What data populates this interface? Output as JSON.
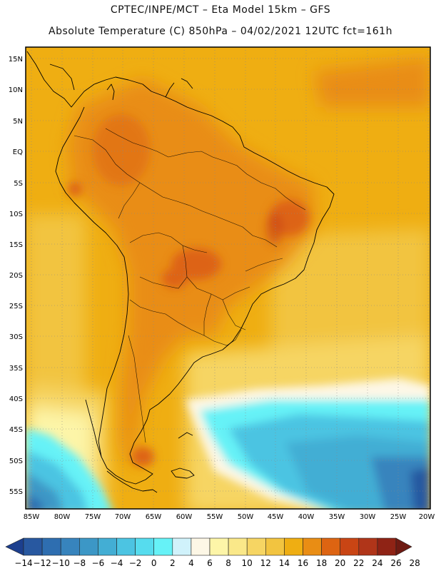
{
  "header": {
    "line1": "CPTEC/INPE/MCT –  Eta Model 15km – GFS",
    "line2": "Absolute Temperature (C) 850hPa – 04/02/2021 12UTC fct=161h"
  },
  "map": {
    "region": "South America",
    "lat_labels": [
      "15N",
      "10N",
      "5N",
      "EQ",
      "5S",
      "10S",
      "15S",
      "20S",
      "25S",
      "30S",
      "35S",
      "40S",
      "45S",
      "50S",
      "55S"
    ],
    "lon_labels": [
      "85W",
      "80W",
      "75W",
      "70W",
      "65W",
      "60W",
      "55W",
      "50W",
      "45W",
      "40W",
      "35W",
      "30W",
      "25W",
      "20W"
    ]
  },
  "colorbar": {
    "labels": [
      "-14",
      "-12",
      "-10",
      "-8",
      "-6",
      "-4",
      "-2",
      "0",
      "2",
      "4",
      "6",
      "8",
      "10",
      "12",
      "14",
      "16",
      "18",
      "20",
      "22",
      "24",
      "26",
      "28"
    ],
    "colors": [
      "#1c3f8e",
      "#2858a0",
      "#2e6eb0",
      "#3784bd",
      "#3c97c6",
      "#43aed4",
      "#4cc4e2",
      "#56dcee",
      "#66f2f7",
      "#d0f2fb",
      "#fdf7e6",
      "#fdf5a8",
      "#fae889",
      "#f6d563",
      "#f2c440",
      "#efae12",
      "#e98d14",
      "#dd6412",
      "#c94514",
      "#b03519",
      "#8f2315",
      "#6e1a12"
    ]
  }
}
